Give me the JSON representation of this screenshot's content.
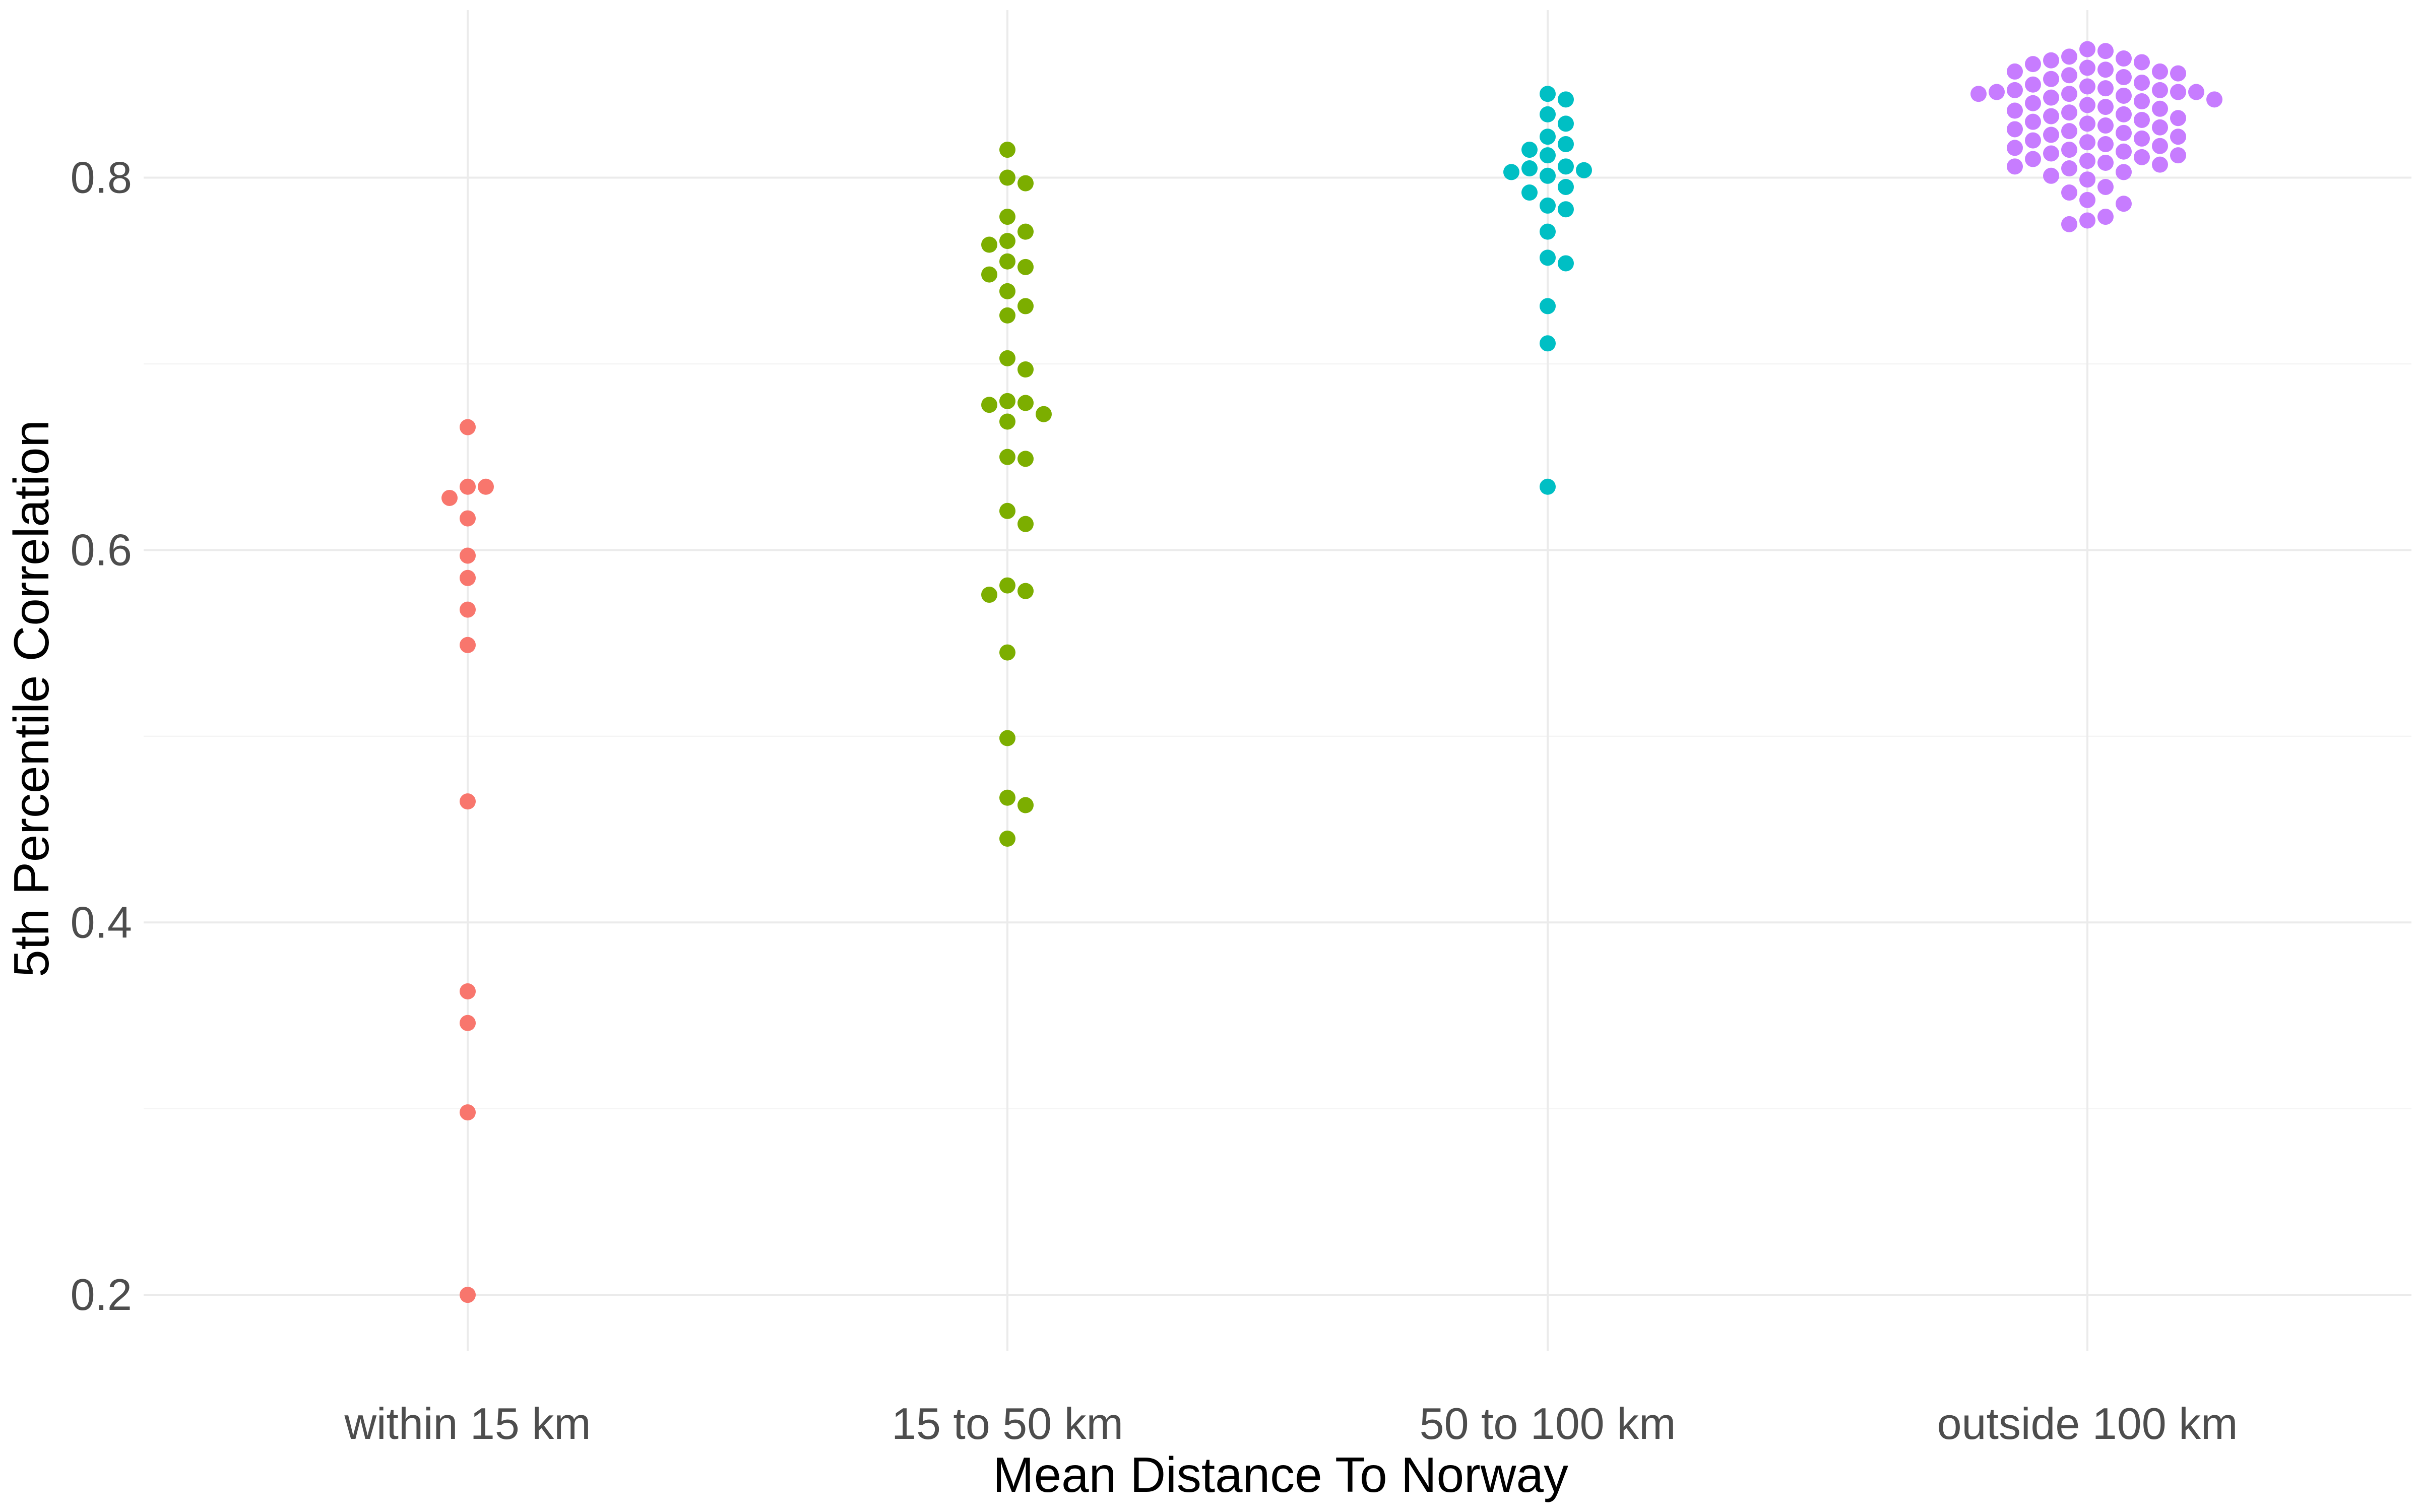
{
  "chart_data": {
    "type": "scatter",
    "subtype": "beeswarm",
    "title": "",
    "xlabel": "Mean Distance To Norway",
    "ylabel": "5th Percentile Correlation",
    "categories": [
      "within 15 km",
      "15 to 50 km",
      "50 to 100 km",
      "outside 100 km"
    ],
    "ylim": [
      0.17,
      0.89
    ],
    "y_ticks": [
      0.2,
      0.4,
      0.6,
      0.8
    ],
    "y_tick_labels": [
      "0.2",
      "0.4",
      "0.6",
      "0.8"
    ],
    "grid": true,
    "legend": "none",
    "series": [
      {
        "category": "within 15 km",
        "color": "#F8766D",
        "values": [
          0.666,
          0.634,
          0.634,
          0.628,
          0.617,
          0.597,
          0.585,
          0.568,
          0.549,
          0.465,
          0.363,
          0.346,
          0.298,
          0.2
        ]
      },
      {
        "category": "15 to 50 km",
        "color": "#7CAE00",
        "values": [
          0.815,
          0.8,
          0.797,
          0.779,
          0.771,
          0.766,
          0.764,
          0.755,
          0.752,
          0.748,
          0.739,
          0.731,
          0.726,
          0.703,
          0.697,
          0.68,
          0.679,
          0.678,
          0.673,
          0.669,
          0.65,
          0.649,
          0.621,
          0.614,
          0.581,
          0.578,
          0.576,
          0.545,
          0.499,
          0.467,
          0.463,
          0.445
        ]
      },
      {
        "category": "50 to 100 km",
        "color": "#00BFC4",
        "values": [
          0.845,
          0.842,
          0.834,
          0.829,
          0.822,
          0.818,
          0.815,
          0.812,
          0.806,
          0.805,
          0.804,
          0.803,
          0.801,
          0.795,
          0.792,
          0.785,
          0.783,
          0.771,
          0.757,
          0.754,
          0.731,
          0.711,
          0.634
        ]
      },
      {
        "category": "outside 100 km",
        "color": "#C77CFF",
        "values": [
          0.869,
          0.868,
          0.865,
          0.864,
          0.863,
          0.862,
          0.861,
          0.859,
          0.858,
          0.857,
          0.857,
          0.856,
          0.855,
          0.854,
          0.853,
          0.851,
          0.85,
          0.849,
          0.848,
          0.847,
          0.847,
          0.846,
          0.846,
          0.846,
          0.845,
          0.845,
          0.844,
          0.843,
          0.842,
          0.841,
          0.84,
          0.839,
          0.838,
          0.837,
          0.836,
          0.835,
          0.834,
          0.833,
          0.832,
          0.831,
          0.83,
          0.829,
          0.828,
          0.827,
          0.826,
          0.825,
          0.824,
          0.823,
          0.822,
          0.821,
          0.82,
          0.819,
          0.818,
          0.817,
          0.816,
          0.815,
          0.814,
          0.813,
          0.812,
          0.811,
          0.81,
          0.809,
          0.808,
          0.807,
          0.806,
          0.805,
          0.803,
          0.801,
          0.799,
          0.795,
          0.792,
          0.788,
          0.786,
          0.779,
          0.777,
          0.775
        ]
      }
    ]
  }
}
